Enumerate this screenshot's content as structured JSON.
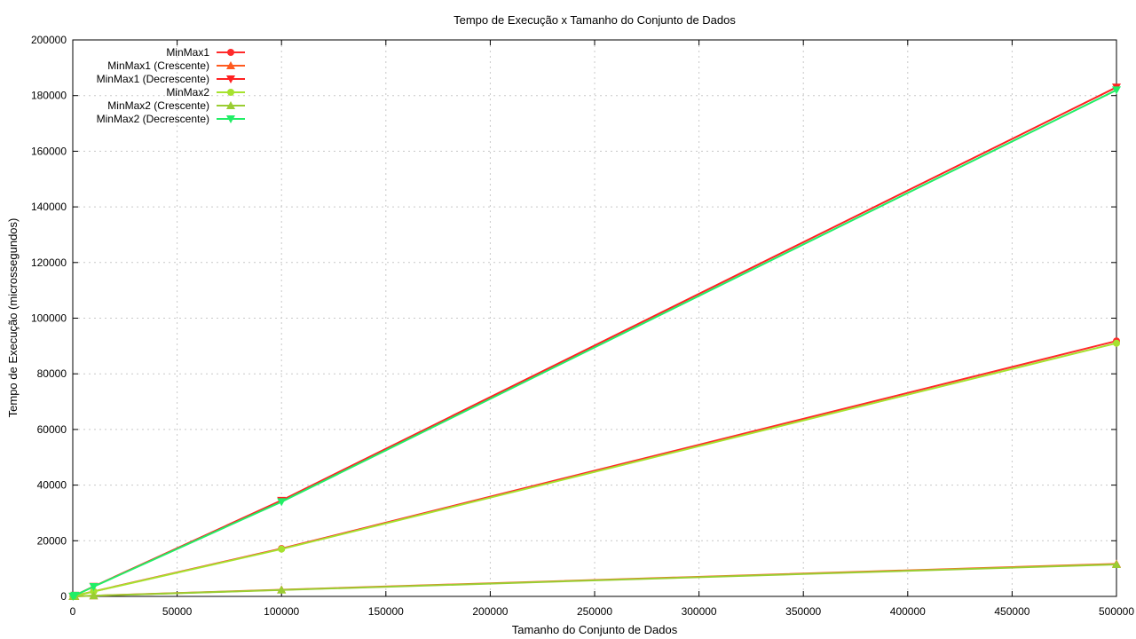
{
  "chart_data": {
    "type": "line",
    "title": "Tempo de Execução x Tamanho do Conjunto de Dados",
    "xlabel": "Tamanho do Conjunto de Dados",
    "ylabel": "Tempo de Execução (microssegundos)",
    "xlim": [
      0,
      500000
    ],
    "ylim": [
      0,
      200000
    ],
    "xticks": [
      0,
      50000,
      100000,
      150000,
      200000,
      250000,
      300000,
      350000,
      400000,
      450000,
      500000
    ],
    "yticks": [
      0,
      20000,
      40000,
      60000,
      80000,
      100000,
      120000,
      140000,
      160000,
      180000,
      200000
    ],
    "grid": true,
    "legend_position": "top-left",
    "x": [
      100,
      1000,
      10000,
      100000,
      500000
    ],
    "series": [
      {
        "name": "MinMax1",
        "marker": "circle",
        "color": "#ff2a2a",
        "values": [
          20,
          200,
          1800,
          17200,
          91800
        ]
      },
      {
        "name": "MinMax1 (Crescente)",
        "marker": "triangle-up",
        "color": "#ff5a1f",
        "values": [
          5,
          50,
          250,
          2400,
          11700
        ]
      },
      {
        "name": "MinMax1 (Decrescente)",
        "marker": "triangle-down",
        "color": "#ff2222",
        "values": [
          40,
          350,
          3600,
          34500,
          183000
        ]
      },
      {
        "name": "MinMax2",
        "marker": "circle",
        "color": "#a6e22e",
        "values": [
          20,
          190,
          1750,
          17000,
          91000
        ]
      },
      {
        "name": "MinMax2 (Crescente)",
        "marker": "triangle-up",
        "color": "#9acd32",
        "values": [
          5,
          50,
          240,
          2300,
          11500
        ]
      },
      {
        "name": "MinMax2 (Decrescente)",
        "marker": "triangle-down",
        "color": "#22ee66",
        "values": [
          40,
          340,
          3500,
          34000,
          182000
        ]
      }
    ]
  }
}
